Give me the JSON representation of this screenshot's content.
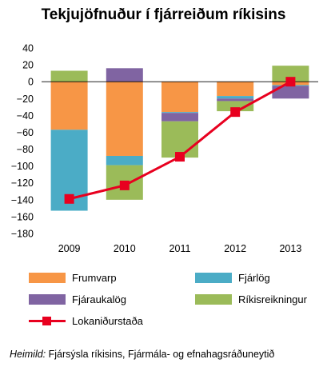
{
  "title": "Tekjujöfnuður í fjárreiðum ríkisins",
  "source": {
    "label": "Heimild:",
    "text": " Fjársýsla ríkisins, Fjármála- og efnahagsráðuneytið"
  },
  "chart_data": {
    "type": "bar",
    "stacked": true,
    "categories": [
      "2009",
      "2010",
      "2011",
      "2012",
      "2013"
    ],
    "ylim": [
      -180,
      40
    ],
    "yticks": [
      40,
      20,
      0,
      -20,
      -40,
      -60,
      -80,
      -100,
      -120,
      -140,
      -160,
      -180
    ],
    "grid": false,
    "legend_position": "bottom",
    "series": [
      {
        "name": "Frumvarp",
        "color": "#f79646",
        "type": "bar",
        "values": [
          -57,
          -88,
          -36,
          -17,
          -4
        ]
      },
      {
        "name": "Fjárlög",
        "color": "#4bacc6",
        "type": "bar",
        "values": [
          -96,
          -11,
          -1,
          -3,
          -1
        ]
      },
      {
        "name": "Fjáraukalög",
        "color": "#8064a2",
        "type": "bar",
        "values": [
          0,
          16,
          -10,
          -3,
          -15
        ]
      },
      {
        "name": "Ríkisreikningur",
        "color": "#9bbb59",
        "type": "bar",
        "values": [
          13,
          -41,
          -43,
          -12,
          19
        ]
      },
      {
        "name": "Lokaniðurstaða",
        "color": "#e8001f",
        "type": "line",
        "values": [
          -139,
          -123,
          -89,
          -36,
          0
        ]
      }
    ]
  }
}
